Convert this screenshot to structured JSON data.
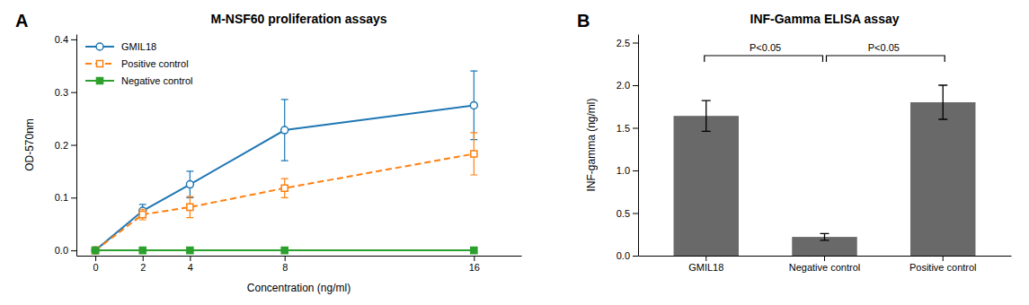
{
  "chart_data": [
    {
      "type": "line",
      "title": "M-NSF60 proliferation assays",
      "xlabel": "Concentration (ng/ml)",
      "ylabel": "OD-570nm",
      "panel_label": "A",
      "x": [
        0,
        2,
        4,
        8,
        16
      ],
      "series": [
        {
          "name": "GMIL18",
          "values": [
            0.0,
            0.075,
            0.125,
            0.228,
            0.275
          ],
          "errors": [
            0.002,
            0.012,
            0.025,
            0.058,
            0.065
          ],
          "marker": "circle-open",
          "line_style": "solid"
        },
        {
          "name": "Positive control",
          "values": [
            0.0,
            0.068,
            0.082,
            0.118,
            0.183
          ],
          "errors": [
            0.002,
            0.01,
            0.02,
            0.018,
            0.04
          ],
          "marker": "square-open",
          "line_style": "dashed"
        },
        {
          "name": "Negative control",
          "values": [
            0.0,
            0.0,
            0.0,
            0.0,
            0.0
          ],
          "errors": [
            0.0,
            0.0,
            0.0,
            0.0,
            0.0
          ],
          "marker": "square",
          "line_style": "solid"
        }
      ],
      "xlim": [
        -0.8,
        18
      ],
      "ylim": [
        -0.01,
        0.41
      ],
      "xticks": [
        0,
        2,
        4,
        8,
        16
      ],
      "yticks": [
        {
          "value": 0,
          "label": "0.0"
        },
        0.1,
        0.2,
        0.3,
        0.4
      ],
      "legend": "upper left"
    },
    {
      "type": "bar",
      "title": "INF-Gamma ELISA assay",
      "ylabel": "INF-gamma (ng/ml)",
      "panel_label": "B",
      "categories": [
        "GMIL18",
        "Negative control",
        "Positive control"
      ],
      "values": [
        1.64,
        0.22,
        1.8
      ],
      "errors": [
        0.18,
        0.04,
        0.2
      ],
      "color": "#696969",
      "ylim": [
        0,
        2.6
      ],
      "yticks": [
        {
          "value": 0.0,
          "label": "0.0"
        },
        0.5,
        {
          "value": 1.0,
          "label": "1.0"
        },
        1.5,
        {
          "value": 2.0,
          "label": "2.0"
        },
        2.5
      ],
      "annotations": [
        {
          "text": "P<0.05",
          "between": [
            "GMIL18",
            "Negative control"
          ]
        },
        {
          "text": "P<0.05",
          "between": [
            "Negative control",
            "Positive control"
          ]
        }
      ]
    }
  ]
}
